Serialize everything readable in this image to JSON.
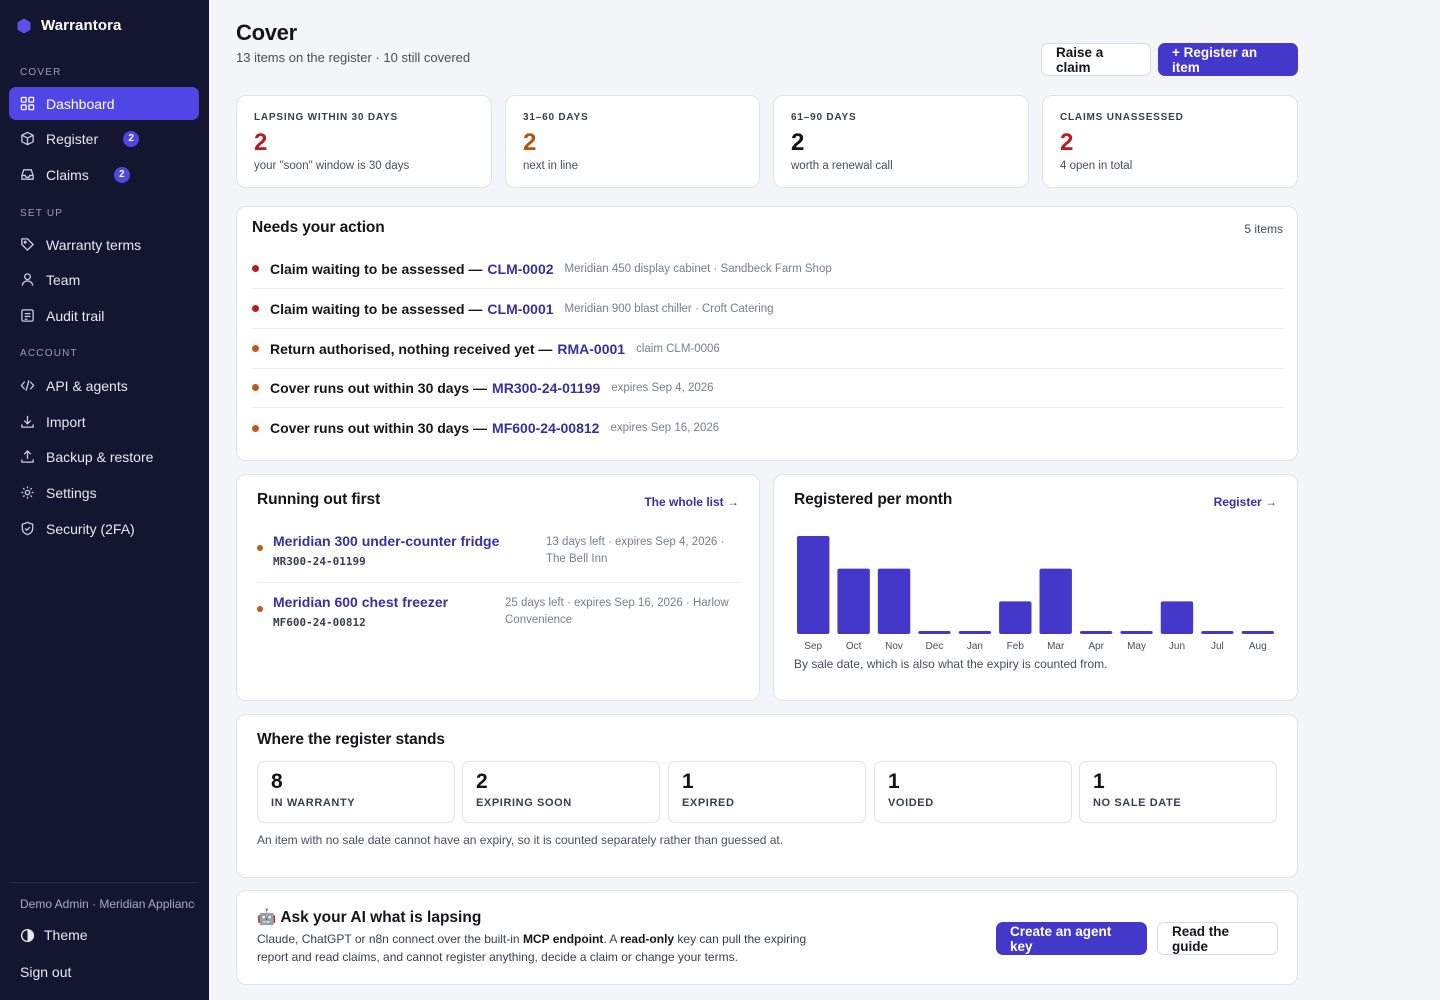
{
  "app": {
    "name": "Warrantora"
  },
  "sidebar": {
    "sections": [
      {
        "label": "COVER"
      },
      {
        "label": "SET UP"
      },
      {
        "label": "ACCOUNT"
      }
    ],
    "items": [
      {
        "label": "Dashboard",
        "icon": "dashboard-icon",
        "active": true
      },
      {
        "label": "Register",
        "icon": "box-icon",
        "badge": "2"
      },
      {
        "label": "Claims",
        "icon": "inbox-icon",
        "badge": "2"
      },
      {
        "label": "Warranty terms",
        "icon": "tag-icon"
      },
      {
        "label": "Team",
        "icon": "user-icon"
      },
      {
        "label": "Audit trail",
        "icon": "list-icon"
      },
      {
        "label": "API & agents",
        "icon": "code-icon"
      },
      {
        "label": "Import",
        "icon": "download-icon"
      },
      {
        "label": "Backup & restore",
        "icon": "upload-icon"
      },
      {
        "label": "Settings",
        "icon": "gear-icon"
      },
      {
        "label": "Security (2FA)",
        "icon": "shield-icon"
      }
    ],
    "user": "Demo Admin · Meridian Appliances",
    "theme_label": "Theme",
    "signout_label": "Sign out"
  },
  "header": {
    "title": "Cover",
    "subtitle": "13 items on the register · 10 still covered",
    "raise_claim": "Raise a claim",
    "register_item": "+ Register an item"
  },
  "stats": [
    {
      "label": "LAPSING WITHIN 30 DAYS",
      "value": "2",
      "note": "your \"soon\" window is 30 days",
      "color": "#b91c1c"
    },
    {
      "label": "31–60 DAYS",
      "value": "2",
      "note": "next in line",
      "color": "#b45309"
    },
    {
      "label": "61–90 DAYS",
      "value": "2",
      "note": "worth a renewal call",
      "color": "#14151c"
    },
    {
      "label": "CLAIMS UNASSESSED",
      "value": "2",
      "note": "4 open in total",
      "color": "#b91c1c"
    }
  ],
  "actions": {
    "title": "Needs your action",
    "count": "5 items",
    "rows": [
      {
        "text": "Claim waiting to be assessed —",
        "ref": "CLM-0002",
        "meta": "Meridian 450 display cabinet · Sandbeck Farm Shop",
        "level": "red"
      },
      {
        "text": "Claim waiting to be assessed —",
        "ref": "CLM-0001",
        "meta": "Meridian 900 blast chiller · Croft Catering",
        "level": "red"
      },
      {
        "text": "Return authorised, nothing received yet —",
        "ref": "RMA-0001",
        "meta": "claim CLM-0006",
        "level": "orange"
      },
      {
        "text": "Cover runs out within 30 days —",
        "ref": "MR300-24-01199",
        "meta": "expires Sep 4, 2026",
        "level": "orange"
      },
      {
        "text": "Cover runs out within 30 days —",
        "ref": "MF600-24-00812",
        "meta": "expires Sep 16, 2026",
        "level": "orange"
      }
    ]
  },
  "running": {
    "title": "Running out first",
    "link": "The whole list →",
    "items": [
      {
        "name": "Meridian 300 under-counter fridge",
        "code": "MR300-24-01199",
        "meta_line1": "13 days left · expires Sep 4, 2026 ·",
        "meta_line2": "The Bell Inn"
      },
      {
        "name": "Meridian 600 chest freezer",
        "code": "MF600-24-00812",
        "meta_line1": "25 days left · expires Sep 16, 2026 · Harlow",
        "meta_line2": "Convenience"
      }
    ]
  },
  "chart": {
    "title": "Registered per month",
    "link": "Register →",
    "footnote": "By sale date, which is also what the expiry is counted from.",
    "bar_color": "#4338ca"
  },
  "chart_data": {
    "type": "bar",
    "title": "Registered per month",
    "categories": [
      "Sep",
      "Oct",
      "Nov",
      "Dec",
      "Jan",
      "Feb",
      "Mar",
      "Apr",
      "May",
      "Jun",
      "Jul",
      "Aug"
    ],
    "values": [
      3,
      2,
      2,
      0,
      0,
      1,
      2,
      0,
      0,
      1,
      0,
      0
    ],
    "ylim": [
      0,
      3
    ],
    "grid": false
  },
  "standing": {
    "title": "Where the register stands",
    "boxes": [
      {
        "value": "8",
        "label": "IN WARRANTY"
      },
      {
        "value": "2",
        "label": "EXPIRING SOON"
      },
      {
        "value": "1",
        "label": "EXPIRED"
      },
      {
        "value": "1",
        "label": "VOIDED"
      },
      {
        "value": "1",
        "label": "NO SALE DATE"
      }
    ],
    "note": "An item with no sale date cannot have an expiry, so it is counted separately rather than guessed at."
  },
  "ai": {
    "emoji": "🤖",
    "title": "Ask your AI what is lapsing",
    "text_1": "Claude, ChatGPT or n8n connect over the built-in ",
    "text_bold_1": "MCP endpoint",
    "text_2": ". A ",
    "text_bold_2": "read-only",
    "text_3": " key can pull the expiring report and read claims, and cannot register anything, decide a claim or change your terms.",
    "create_key": "Create an agent key",
    "read_guide": "Read the guide"
  }
}
